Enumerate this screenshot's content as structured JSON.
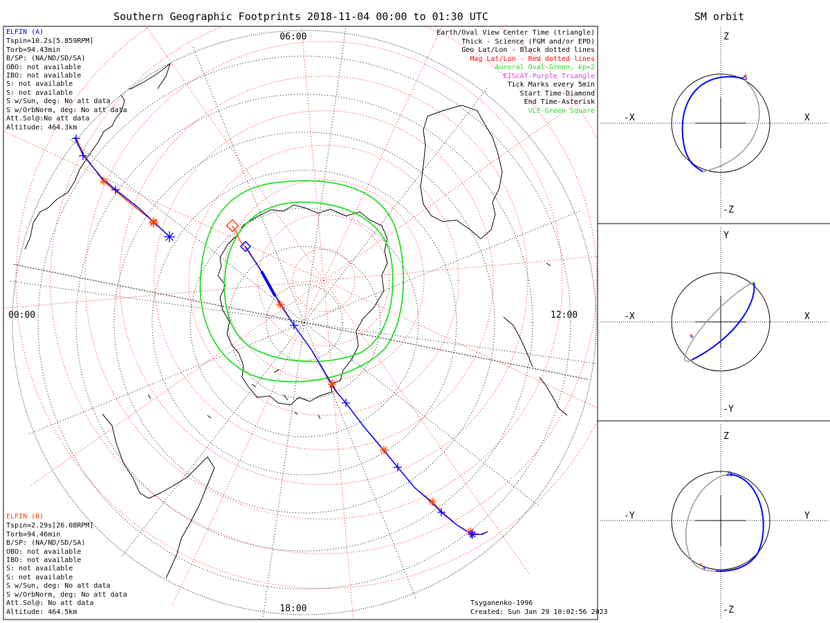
{
  "title": "Southern Geographic Footprints 2018-11-04 00:00 to 01:30 UTC",
  "time_labels": {
    "top": "06:00",
    "left": "00:00",
    "right": "12:00",
    "bottom": "18:00"
  },
  "elfin_a": {
    "name": "ELFIN (A)",
    "color": "#0000cc",
    "lines": [
      "Tspin=10.2s[5.859RPM]",
      "Torb=94.43min",
      "B/SP: (NA/ND/SD/SA)",
      "OBO: not available",
      "IBO: not available",
      "S: not available",
      "S: not available",
      "S w/Sun, deg: No att data",
      "S w/OrbNorm, deg: No att data",
      "Att.Sol@:No att data",
      "Altitude: 464.3km"
    ]
  },
  "elfin_b": {
    "name": "ELFIN (B)",
    "color": "#ff4000",
    "lines": [
      "Tspin=2.29s[26.08RPM]",
      "Torb=94.46min",
      "B/SP: (NA/ND/SD/SA)",
      "OBO: not available",
      "IBO: not available",
      "S: not available",
      "S: not available",
      "S w/Sun, deg: No att data",
      "S w/OrbNorm, deg: No att data",
      "Att.Sol@: No att data",
      "Altitude: 464.5km"
    ]
  },
  "legend": [
    {
      "text": "Earth/Oval View Center Time (triangle)",
      "color": "#000000"
    },
    {
      "text": "Thick - Science (FGM and/or EPD)",
      "color": "#000000"
    },
    {
      "text": "Geo Lat/Lon - Black dotted lines",
      "color": "#000000"
    },
    {
      "text": "Mag Lat/Lon - Red dotted lines",
      "color": "#ff0000"
    },
    {
      "text": "Auroral Oval-Green, kp=2",
      "color": "#22dd22"
    },
    {
      "text": "EISCAT-Purple Triangle",
      "color": "#dd44dd"
    },
    {
      "text": "Tick Marks every 5min",
      "color": "#000000"
    },
    {
      "text": "Start Time-Diamond",
      "color": "#000000"
    },
    {
      "text": "End Time-Asterisk",
      "color": "#000000"
    },
    {
      "text": "VLF-Green Square",
      "color": "#22dd22"
    }
  ],
  "model": "Tsyganenko-1996",
  "created": "Created: Sun Jan 29 10:02:56 2023",
  "sm_orbit": {
    "title": "SM orbit",
    "panels": [
      {
        "top": "Z",
        "bottom": "-Z",
        "left": "-X",
        "right": "X"
      },
      {
        "top": "Y",
        "bottom": "-Y",
        "left": "-X",
        "right": "X"
      },
      {
        "top": "Z",
        "bottom": "-Z",
        "left": "-Y",
        "right": "Y"
      }
    ]
  },
  "colors": {
    "elfin_a": "#0000ff",
    "elfin_b": "#ff4000",
    "geo_grid": "#000000",
    "mag_grid": "#ff0000",
    "auroral_oval": "#22dd22",
    "orbit_shadow": "#999999"
  }
}
